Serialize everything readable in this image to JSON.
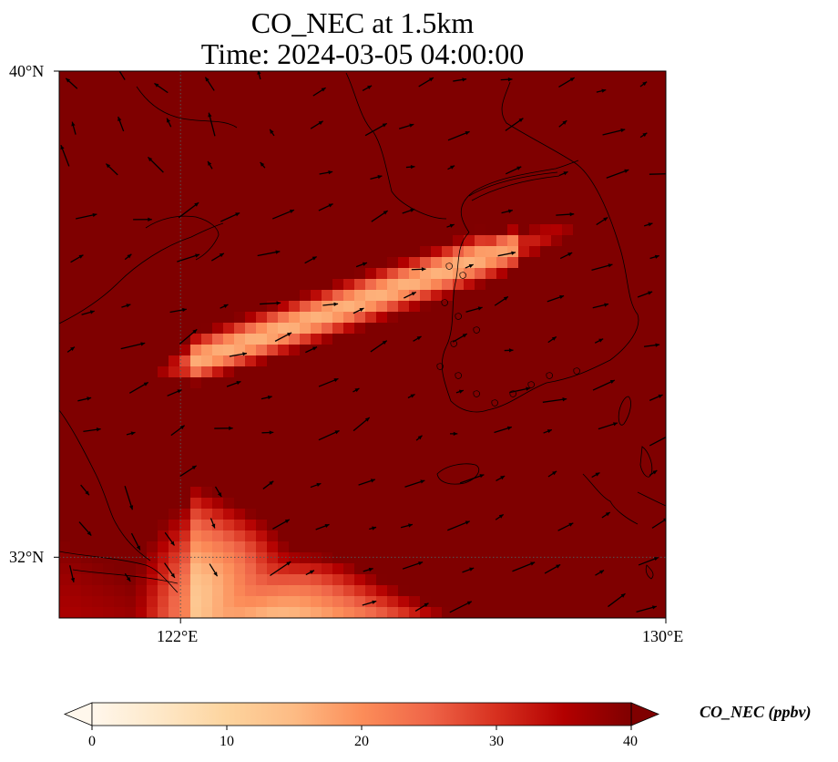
{
  "title": {
    "line1": "CO_NEC at 1.5km",
    "line2": "Time: 2024-03-05 04:00:00"
  },
  "map": {
    "lat_range": [
      31.0,
      40.0
    ],
    "lon_range": [
      120.0,
      130.0
    ],
    "gridlines": {
      "lats": [
        32
      ],
      "lons": [
        122
      ],
      "style": "dotted"
    },
    "lat_labels": [
      {
        "value": 40,
        "text": "40°N"
      },
      {
        "value": 32,
        "text": "32°N"
      }
    ],
    "lon_labels": [
      {
        "value": 122,
        "text": "122°E"
      },
      {
        "value": 130,
        "text": "130°E"
      }
    ],
    "field": {
      "name": "CO_NEC",
      "units": "ppbv",
      "height": "1.5km",
      "description_of_pattern": "saturated plume over northern China / Yellow Sea in the north and west; diagonal bands of moderate values across the Yellow Sea; low values over the East China Sea in the south-east"
    },
    "wind_vectors": "prevailing westerly to south-westerly flow"
  },
  "colorbar": {
    "label": "CO_NEC (ppbv)",
    "min": 0,
    "max": 40,
    "ticks": [
      0,
      10,
      20,
      30,
      40
    ],
    "extend": "both",
    "colormap": "OrRd",
    "colors": [
      "#fff7ec",
      "#fee8c8",
      "#fdd49e",
      "#fdbb84",
      "#fc8d59",
      "#ef6548",
      "#d7301f",
      "#b30000",
      "#7f0000"
    ]
  }
}
